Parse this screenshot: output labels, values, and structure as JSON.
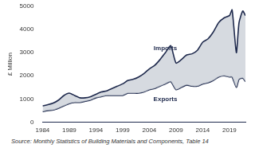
{
  "chart_data": {
    "type": "line",
    "y_label": "£ Million",
    "source": "Source: Monthly Statistics of Building Materials and Components, Table 14",
    "x": [
      1984,
      1985,
      1986,
      1987,
      1988,
      1989,
      1990,
      1991,
      1992,
      1993,
      1994,
      1995,
      1996,
      1997,
      1998,
      1999,
      2000,
      2001,
      2002,
      2003,
      2004,
      2005,
      2006,
      2007,
      2008,
      2009,
      2010,
      2011,
      2012,
      2013,
      2014,
      2015,
      2016,
      2017,
      2018,
      2019,
      2019.5,
      2020.3,
      2020.8,
      2021.5,
      2022
    ],
    "series": [
      {
        "name": "Imports",
        "color": "#1f2a4d",
        "values": [
          700,
          750,
          820,
          950,
          1150,
          1250,
          1150,
          1050,
          1050,
          1100,
          1200,
          1300,
          1350,
          1450,
          1550,
          1650,
          1800,
          1850,
          1950,
          2100,
          2300,
          2450,
          2700,
          3000,
          3300,
          2550,
          2700,
          2900,
          2950,
          3100,
          3450,
          3600,
          3900,
          4300,
          4500,
          4600,
          4850,
          3000,
          4300,
          4800,
          4600
        ]
      },
      {
        "name": "Exports",
        "color": "#1f2a4d",
        "values": [
          450,
          500,
          520,
          600,
          700,
          800,
          850,
          850,
          900,
          950,
          1050,
          1100,
          1150,
          1150,
          1150,
          1150,
          1250,
          1250,
          1250,
          1300,
          1400,
          1450,
          1550,
          1650,
          1750,
          1400,
          1500,
          1600,
          1550,
          1550,
          1650,
          1700,
          1800,
          1950,
          2000,
          1950,
          1950,
          1500,
          1850,
          1900,
          1750
        ]
      }
    ],
    "annotations": [
      {
        "text": "Imports",
        "x": 2007,
        "y": 3200
      },
      {
        "text": "Exports",
        "x": 2007,
        "y": 1000
      }
    ],
    "xlim": [
      1984,
      2022
    ],
    "xticks": [
      1984,
      1989,
      1994,
      1999,
      2004,
      2009,
      2014,
      2019
    ],
    "ylim": [
      0,
      5000
    ],
    "yticks": [
      0,
      1000,
      2000,
      3000,
      4000,
      5000
    ],
    "grid": false
  }
}
